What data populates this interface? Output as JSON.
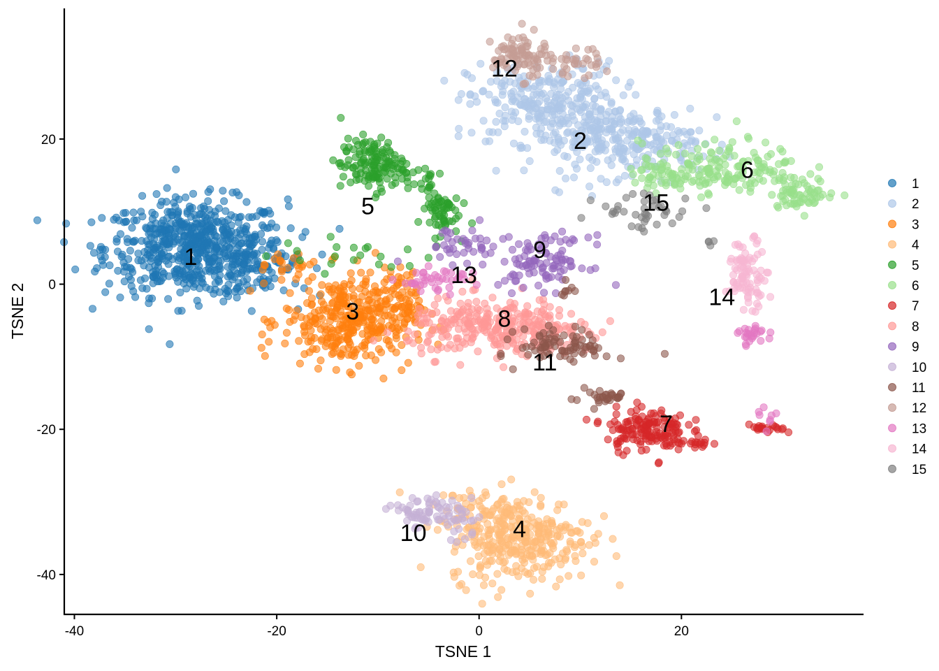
{
  "chart_data": {
    "type": "scatter",
    "title": "",
    "xlabel": "TSNE 1",
    "ylabel": "TSNE 2",
    "xlim": [
      -41,
      38
    ],
    "ylim": [
      -45.5,
      38
    ],
    "xticks": [
      -40,
      -20,
      0,
      20
    ],
    "yticks": [
      -40,
      -20,
      0,
      20
    ],
    "grid": false,
    "legend_position": "right",
    "point_opacity": 0.6,
    "series": [
      {
        "name": "1",
        "color": "#1F77B4",
        "cluster_label": "1",
        "label_pos": [
          -28.5,
          3.5
        ],
        "blobs": [
          {
            "center": [
              -28,
              5
            ],
            "sd": [
              4.5,
              3.3
            ],
            "n": 650
          },
          {
            "center": [
              -22,
              2
            ],
            "sd": [
              2.5,
              2
            ],
            "n": 60
          }
        ]
      },
      {
        "name": "2",
        "color": "#AEC7E8",
        "cluster_label": "2",
        "label_pos": [
          10,
          19.5
        ],
        "blobs": [
          {
            "center": [
              6.5,
              25
            ],
            "sd": [
              3.8,
              2.8
            ],
            "n": 260
          },
          {
            "center": [
              13,
              20
            ],
            "sd": [
              4,
              2.5
            ],
            "n": 220
          },
          {
            "center": [
              18,
              19
            ],
            "sd": [
              2.5,
              2
            ],
            "n": 60
          }
        ]
      },
      {
        "name": "3",
        "color": "#FF7F0E",
        "cluster_label": "3",
        "label_pos": [
          -12.5,
          -4
        ],
        "blobs": [
          {
            "center": [
              -13,
              -5
            ],
            "sd": [
              3.2,
              3.2
            ],
            "n": 340
          },
          {
            "center": [
              -8,
              -3
            ],
            "sd": [
              1.5,
              2.5
            ],
            "n": 60
          },
          {
            "center": [
              -19,
              3
            ],
            "sd": [
              1.5,
              1
            ],
            "n": 20
          }
        ]
      },
      {
        "name": "4",
        "color": "#FFBB78",
        "cluster_label": "4",
        "label_pos": [
          4,
          -34
        ],
        "blobs": [
          {
            "center": [
              4,
              -35
            ],
            "sd": [
              3.5,
              3
            ],
            "n": 330
          },
          {
            "center": [
              0,
              -31
            ],
            "sd": [
              2,
              1.5
            ],
            "n": 40
          }
        ]
      },
      {
        "name": "5",
        "color": "#2CA02C",
        "cluster_label": "5",
        "label_pos": [
          -11,
          10.5
        ],
        "blobs": [
          {
            "center": [
              -10.5,
              16.5
            ],
            "sd": [
              1.6,
              1.8
            ],
            "n": 140
          },
          {
            "center": [
              -4,
              10
            ],
            "sd": [
              1,
              1.6
            ],
            "n": 60
          },
          {
            "center": [
              -12,
              4
            ],
            "sd": [
              4,
              1.2
            ],
            "n": 20
          },
          {
            "center": [
              -6,
              14
            ],
            "sd": [
              1.5,
              1
            ],
            "n": 20
          }
        ]
      },
      {
        "name": "6",
        "color": "#98DF8A",
        "cluster_label": "6",
        "label_pos": [
          26.5,
          15.5
        ],
        "blobs": [
          {
            "center": [
              24,
              16
            ],
            "sd": [
              4,
              1.8
            ],
            "n": 160
          },
          {
            "center": [
              32,
              12.5
            ],
            "sd": [
              1.6,
              1
            ],
            "n": 60
          },
          {
            "center": [
              19,
              14.5
            ],
            "sd": [
              2,
              1
            ],
            "n": 40
          }
        ]
      },
      {
        "name": "7",
        "color": "#D62728",
        "cluster_label": "7",
        "label_pos": [
          18.5,
          -19.5
        ],
        "blobs": [
          {
            "center": [
              16.5,
              -20
            ],
            "sd": [
              2,
              1.5
            ],
            "n": 150
          },
          {
            "center": [
              21.5,
              -22
            ],
            "sd": [
              1,
              0.3
            ],
            "n": 15
          },
          {
            "center": [
              28.5,
              -20
            ],
            "sd": [
              0.9,
              0.3
            ],
            "n": 20
          }
        ]
      },
      {
        "name": "8",
        "color": "#FF9896",
        "cluster_label": "8",
        "label_pos": [
          2.5,
          -5
        ],
        "blobs": [
          {
            "center": [
              1,
              -6
            ],
            "sd": [
              4,
              2
            ],
            "n": 260
          },
          {
            "center": [
              7,
              -6
            ],
            "sd": [
              2,
              1.5
            ],
            "n": 60
          }
        ]
      },
      {
        "name": "9",
        "color": "#9467BD",
        "cluster_label": "9",
        "label_pos": [
          6,
          4.5
        ],
        "blobs": [
          {
            "center": [
              6.5,
              3
            ],
            "sd": [
              2.2,
              1.8
            ],
            "n": 100
          },
          {
            "center": [
              -2,
              5.5
            ],
            "sd": [
              2.5,
              1.2
            ],
            "n": 40
          }
        ]
      },
      {
        "name": "10",
        "color": "#C5B0D5",
        "cluster_label": "10",
        "label_pos": [
          -6.5,
          -34.5
        ],
        "blobs": [
          {
            "center": [
              -5.5,
              -31.5
            ],
            "sd": [
              1.6,
              1.2
            ],
            "n": 60
          },
          {
            "center": [
              -2,
              -33
            ],
            "sd": [
              1.2,
              1.5
            ],
            "n": 25
          }
        ]
      },
      {
        "name": "11",
        "color": "#8C564B",
        "cluster_label": "11",
        "label_pos": [
          6.5,
          -11
        ],
        "blobs": [
          {
            "center": [
              8.5,
              -8.5
            ],
            "sd": [
              2.3,
              1.2
            ],
            "n": 80
          },
          {
            "center": [
              12,
              -15.5
            ],
            "sd": [
              1.5,
              0.6
            ],
            "n": 30
          },
          {
            "center": [
              8.5,
              -1.5
            ],
            "sd": [
              0.5,
              0.8
            ],
            "n": 8
          }
        ]
      },
      {
        "name": "12",
        "color": "#C49C94",
        "cluster_label": "12",
        "label_pos": [
          2.5,
          29.5
        ],
        "blobs": [
          {
            "center": [
              4,
              31.5
            ],
            "sd": [
              1.3,
              1.6
            ],
            "n": 80
          },
          {
            "center": [
              8.5,
              30.5
            ],
            "sd": [
              1.8,
              1
            ],
            "n": 40
          }
        ]
      },
      {
        "name": "13",
        "color": "#E377C2",
        "cluster_label": "13",
        "label_pos": [
          -1.5,
          1
        ],
        "blobs": [
          {
            "center": [
              -4,
              0.5
            ],
            "sd": [
              2,
              0.8
            ],
            "n": 40
          },
          {
            "center": [
              27,
              -7
            ],
            "sd": [
              0.7,
              0.7
            ],
            "n": 25
          },
          {
            "center": [
              28.5,
              -19
            ],
            "sd": [
              0.4,
              1
            ],
            "n": 8
          }
        ]
      },
      {
        "name": "14",
        "color": "#F7B6D2",
        "cluster_label": "14",
        "label_pos": [
          24,
          -2
        ],
        "blobs": [
          {
            "center": [
              26.5,
              1.5
            ],
            "sd": [
              1,
              2.3
            ],
            "n": 90
          }
        ]
      },
      {
        "name": "15",
        "color": "#7F7F7F",
        "cluster_label": "15",
        "label_pos": [
          17.5,
          11
        ],
        "blobs": [
          {
            "center": [
              16.5,
              10
            ],
            "sd": [
              2.5,
              1.3
            ],
            "n": 40
          },
          {
            "center": [
              23,
              5.5
            ],
            "sd": [
              0.5,
              0.3
            ],
            "n": 4
          }
        ]
      }
    ]
  }
}
